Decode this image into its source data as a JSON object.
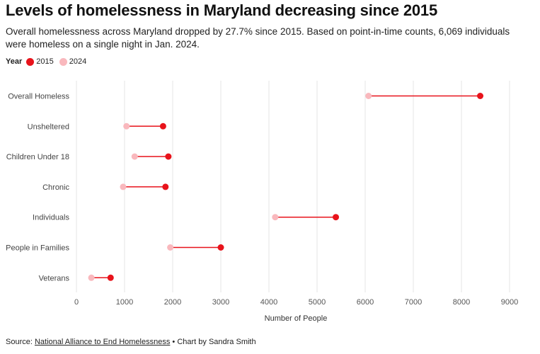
{
  "title": "Levels of homelessness in Maryland decreasing since 2015",
  "subtitle": "Overall homelessness across Maryland dropped by 27.7% since 2015. Based on point-in-time counts, 6,069 individuals were homeless on a single night in Jan. 2024.",
  "legend": {
    "title": "Year",
    "items": [
      {
        "label": "2015",
        "color": "#e8131b"
      },
      {
        "label": "2024",
        "color": "#f9b8bd"
      }
    ]
  },
  "chart_data": {
    "type": "dot-range",
    "categories": [
      "Overall Homeless",
      "Unsheltered",
      "Children Under 18",
      "Chronic",
      "Individuals",
      "People in Families",
      "Veterans"
    ],
    "series": [
      {
        "name": "2015",
        "values": [
          8390,
          1800,
          1910,
          1850,
          5390,
          3000,
          710
        ]
      },
      {
        "name": "2024",
        "values": [
          6069,
          1040,
          1210,
          970,
          4130,
          1950,
          310
        ]
      }
    ],
    "xlabel": "Number of People",
    "xlim": [
      0,
      9000
    ],
    "xticks": [
      0,
      1000,
      2000,
      3000,
      4000,
      5000,
      6000,
      7000,
      8000,
      9000
    ],
    "grid": true,
    "colors": {
      "2015": "#e8131b",
      "2024": "#f9b8bd",
      "line": "#e8131b",
      "grid": "#e6e6e6"
    }
  },
  "footer": {
    "source_prefix": "Source: ",
    "source_link": "National Alliance to End Homelessness",
    "credit": " • Chart by Sandra Smith"
  }
}
